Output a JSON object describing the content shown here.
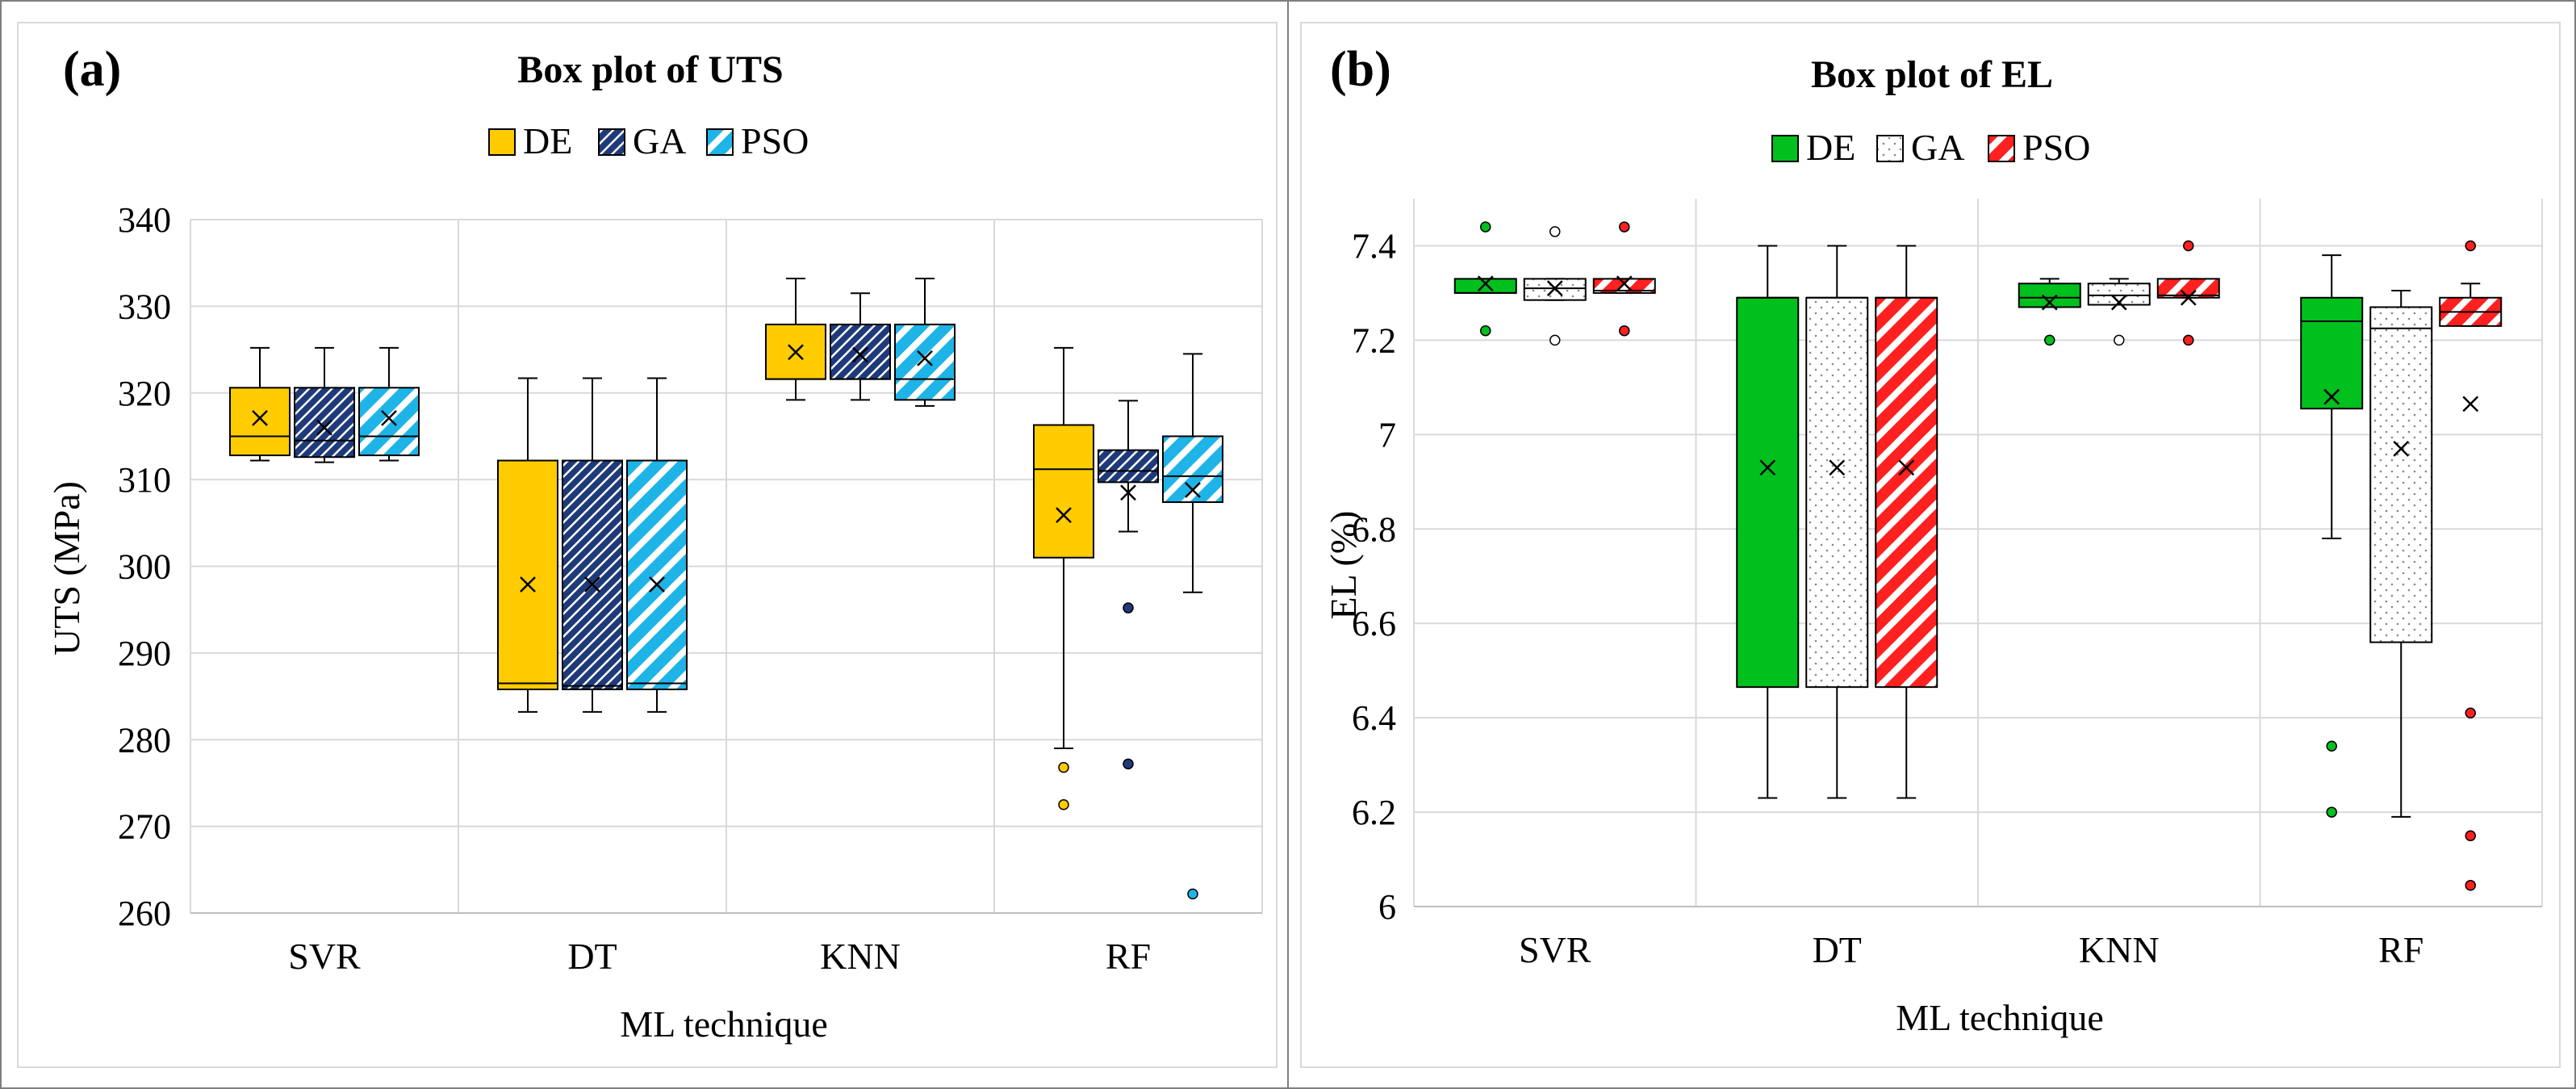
{
  "chart_data": [
    {
      "type": "box",
      "panel_label": "(a)",
      "title": "Box plot of UTS",
      "xlabel": "ML technique",
      "ylabel": "UTS (MPa)",
      "ylim": [
        260,
        340
      ],
      "yticks": [
        260,
        270,
        280,
        290,
        300,
        310,
        320,
        330,
        340
      ],
      "grid": true,
      "legend_position": "top-center",
      "categories": [
        "SVR",
        "DT",
        "KNN",
        "RF"
      ],
      "series": [
        {
          "name": "DE",
          "color": "#FFCC00",
          "pattern": "solid",
          "boxes": [
            {
              "min": 312.2,
              "q1": 312.8,
              "median": 315.0,
              "q3": 320.6,
              "max": 325.2,
              "mean": 317.1,
              "outliers": []
            },
            {
              "min": 283.2,
              "q1": 285.8,
              "median": 286.5,
              "q3": 312.2,
              "max": 321.7,
              "mean": 297.9,
              "outliers": []
            },
            {
              "min": 319.2,
              "q1": 321.6,
              "median": 321.6,
              "q3": 327.9,
              "max": 333.2,
              "mean": 324.7,
              "outliers": []
            },
            {
              "min": 279.0,
              "q1": 301.0,
              "median": 311.2,
              "q3": 316.3,
              "max": 325.2,
              "mean": 305.9,
              "outliers": [
                276.8,
                272.5
              ]
            }
          ]
        },
        {
          "name": "GA",
          "color": "#1F3A7A",
          "pattern": "dense-hatch",
          "boxes": [
            {
              "min": 312.0,
              "q1": 312.6,
              "median": 314.5,
              "q3": 320.6,
              "max": 325.2,
              "mean": 316.0,
              "outliers": []
            },
            {
              "min": 283.2,
              "q1": 285.8,
              "median": 286.2,
              "q3": 312.2,
              "max": 321.7,
              "mean": 297.9,
              "outliers": []
            },
            {
              "min": 319.2,
              "q1": 321.6,
              "median": 321.6,
              "q3": 327.9,
              "max": 331.5,
              "mean": 324.4,
              "outliers": []
            },
            {
              "min": 304.0,
              "q1": 309.7,
              "median": 311.0,
              "q3": 313.4,
              "max": 319.1,
              "mean": 308.5,
              "outliers": [
                295.2,
                277.2
              ]
            }
          ]
        },
        {
          "name": "PSO",
          "color": "#1EB4E8",
          "pattern": "wide-hatch",
          "boxes": [
            {
              "min": 312.2,
              "q1": 312.8,
              "median": 315.0,
              "q3": 320.6,
              "max": 325.2,
              "mean": 317.1,
              "outliers": []
            },
            {
              "min": 283.2,
              "q1": 285.8,
              "median": 286.5,
              "q3": 312.2,
              "max": 321.7,
              "mean": 297.9,
              "outliers": []
            },
            {
              "min": 318.5,
              "q1": 319.2,
              "median": 321.6,
              "q3": 327.9,
              "max": 333.2,
              "mean": 324.0,
              "outliers": []
            },
            {
              "min": 297.0,
              "q1": 307.4,
              "median": 310.4,
              "q3": 315.0,
              "max": 324.5,
              "mean": 308.8,
              "outliers": [
                262.2
              ]
            }
          ]
        }
      ]
    },
    {
      "type": "box",
      "panel_label": "(b)",
      "title": "Box plot of EL",
      "xlabel": "ML technique",
      "ylabel": "EL (%)",
      "ylim": [
        6,
        7.5
      ],
      "yticks": [
        6,
        6.2,
        6.4,
        6.6,
        6.8,
        7,
        7.2,
        7.4
      ],
      "ytick_labels": [
        "6",
        "6.2",
        "6.4",
        "6.6",
        "6.8",
        "7",
        "7.2",
        "7.4"
      ],
      "grid": true,
      "legend_position": "top-center",
      "categories": [
        "SVR",
        "DT",
        "KNN",
        "RF"
      ],
      "series": [
        {
          "name": "DE",
          "color": "#00C01E",
          "pattern": "solid",
          "boxes": [
            {
              "min": 7.3,
              "q1": 7.3,
              "median": 7.3,
              "q3": 7.33,
              "max": 7.33,
              "mean": 7.32,
              "outliers": [
                7.44,
                7.22
              ]
            },
            {
              "min": 6.23,
              "q1": 6.465,
              "median": 7.29,
              "q3": 7.29,
              "max": 7.4,
              "mean": 6.93,
              "outliers": []
            },
            {
              "min": 7.27,
              "q1": 7.27,
              "median": 7.29,
              "q3": 7.32,
              "max": 7.33,
              "mean": 7.28,
              "outliers": [
                7.2
              ]
            },
            {
              "min": 6.78,
              "q1": 7.055,
              "median": 7.24,
              "q3": 7.29,
              "max": 7.38,
              "mean": 7.08,
              "outliers": [
                6.34,
                6.2
              ]
            }
          ]
        },
        {
          "name": "GA",
          "color": "#FFFFFF",
          "pattern": "dots",
          "boxes": [
            {
              "min": 7.285,
              "q1": 7.285,
              "median": 7.31,
              "q3": 7.33,
              "max": 7.33,
              "mean": 7.31,
              "outliers": [
                7.43,
                7.2
              ]
            },
            {
              "min": 6.23,
              "q1": 6.465,
              "median": 7.29,
              "q3": 7.29,
              "max": 7.4,
              "mean": 6.93,
              "outliers": []
            },
            {
              "min": 7.275,
              "q1": 7.275,
              "median": 7.295,
              "q3": 7.32,
              "max": 7.33,
              "mean": 7.28,
              "outliers": [
                7.2
              ]
            },
            {
              "min": 6.19,
              "q1": 6.56,
              "median": 7.225,
              "q3": 7.27,
              "max": 7.305,
              "mean": 6.97,
              "outliers": []
            }
          ]
        },
        {
          "name": "PSO",
          "color": "#FF2020",
          "pattern": "wide-hatch",
          "boxes": [
            {
              "min": 7.3,
              "q1": 7.3,
              "median": 7.305,
              "q3": 7.33,
              "max": 7.33,
              "mean": 7.32,
              "outliers": [
                7.44,
                7.22
              ]
            },
            {
              "min": 6.23,
              "q1": 6.465,
              "median": 7.29,
              "q3": 7.29,
              "max": 7.4,
              "mean": 6.93,
              "outliers": []
            },
            {
              "min": 7.29,
              "q1": 7.29,
              "median": 7.295,
              "q3": 7.33,
              "max": 7.33,
              "mean": 7.29,
              "outliers": [
                7.4,
                7.2
              ]
            },
            {
              "min": 7.23,
              "q1": 7.23,
              "median": 7.26,
              "q3": 7.29,
              "max": 7.32,
              "mean": 7.065,
              "outliers": [
                7.4,
                6.41,
                6.15,
                6.045
              ]
            }
          ]
        }
      ]
    }
  ]
}
